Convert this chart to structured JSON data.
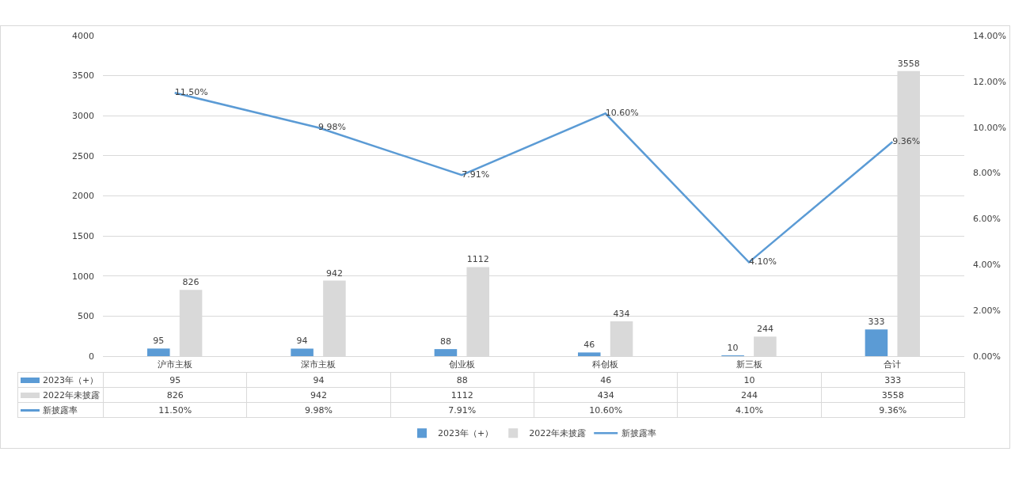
{
  "chart_data": {
    "type": "bar",
    "categories": [
      "沪市主板",
      "深市主板",
      "创业板",
      "科创板",
      "新三板",
      "合计"
    ],
    "series": [
      {
        "name": "2023年（+）",
        "color": "#5b9bd5",
        "values": [
          95,
          94,
          88,
          46,
          10,
          333
        ],
        "value_labels": [
          "95",
          "94",
          "88",
          "46",
          "10",
          "333"
        ]
      },
      {
        "name": "2022年未披露",
        "color": "#d9d9d9",
        "values": [
          826,
          942,
          1112,
          434,
          244,
          3558
        ],
        "value_labels": [
          "826",
          "942",
          "1112",
          "434",
          "244",
          "3558"
        ]
      },
      {
        "name": "新披露率",
        "type": "line",
        "axis": "y2",
        "color": "#5b9bd5",
        "values": [
          11.5,
          9.98,
          7.91,
          10.6,
          4.1,
          9.36
        ],
        "value_labels": [
          "11.50%",
          "9.98%",
          "7.91%",
          "10.60%",
          "4.10%",
          "9.36%"
        ]
      }
    ],
    "ylim": [
      0,
      4000
    ],
    "yticks": [
      0,
      500,
      1000,
      1500,
      2000,
      2500,
      3000,
      3500,
      4000
    ],
    "y2lim": [
      0,
      14
    ],
    "y2ticks": [
      {
        "value": 0,
        "label": "0.00%"
      },
      {
        "value": 2,
        "label": "2.00%"
      },
      {
        "value": 4,
        "label": "4.00%"
      },
      {
        "value": 6,
        "label": "6.00%"
      },
      {
        "value": 8,
        "label": "8.00%"
      },
      {
        "value": 10,
        "label": "10.00%"
      },
      {
        "value": 12,
        "label": "12.00%"
      },
      {
        "value": 14,
        "label": "14.00%"
      }
    ],
    "grid": "y",
    "legend": "bottom",
    "marker": "none",
    "line_style": "solid"
  }
}
